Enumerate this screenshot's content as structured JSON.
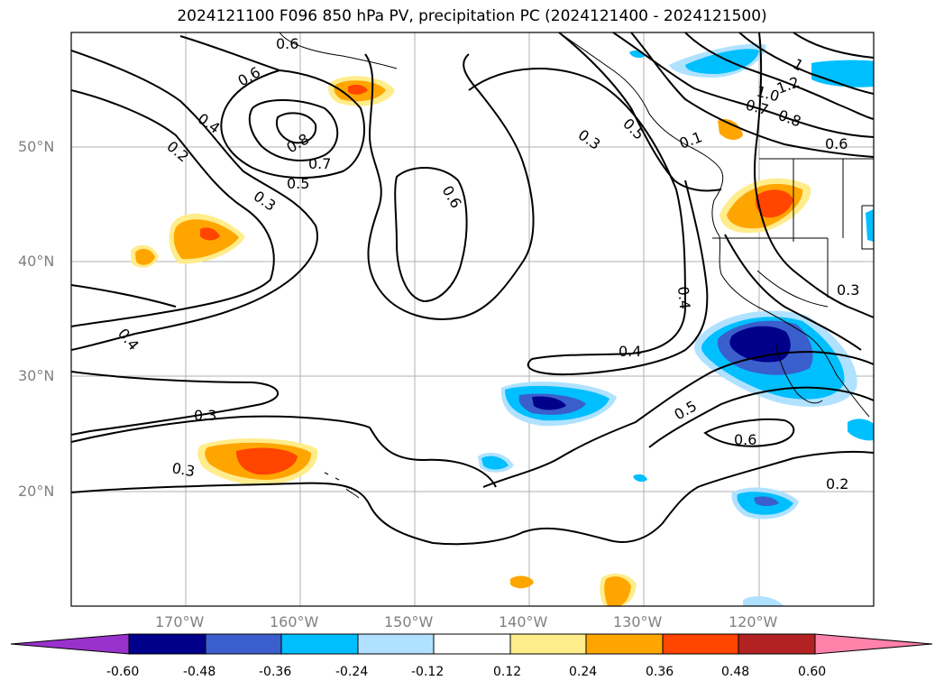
{
  "title": "2024121100 F096 850 hPa PV, precipitation PC (2024121400 - 2024121500)",
  "map": {
    "projection": "equirectangular",
    "region": "North-East Pacific Ocean, Hawaii and the North American west coast",
    "lat_range": [
      10,
      60
    ],
    "lon_range": [
      -180,
      -110
    ],
    "gridlines": true,
    "coastlines": true,
    "state_borders": true
  },
  "lat_labels": [
    "50°N",
    "40°N",
    "30°N",
    "20°N"
  ],
  "lon_labels": [
    "170°W",
    "160°W",
    "150°W",
    "140°W",
    "130°W",
    "120°W"
  ],
  "contours": {
    "variable": "850 hPa PV",
    "labels": [
      "0.6",
      "0.6",
      "0.4",
      "0.2",
      "0.8",
      "0.7",
      "0.5",
      "0.3",
      "0.6",
      "0.3",
      "0.5",
      "1",
      "1.0",
      "1.2",
      "0.7",
      "0.8",
      "0.6",
      "0.1",
      "0.4",
      "0.3",
      "0.4",
      "0.4",
      "0.5",
      "0.6",
      "0.3",
      "0.3",
      "0.2"
    ]
  },
  "colorbar": {
    "levels": [
      "-0.60",
      "-0.48",
      "-0.36",
      "-0.24",
      "-0.12",
      "0.12",
      "0.24",
      "0.36",
      "0.48",
      "0.60"
    ],
    "colors": [
      "#9932cc",
      "#00008b",
      "#3a5fcd",
      "#00bfff",
      "#b0e2ff",
      "#ffffff",
      "#ffec8b",
      "#ffa500",
      "#ff4500",
      "#b22222",
      "#ff82ab"
    ]
  }
}
